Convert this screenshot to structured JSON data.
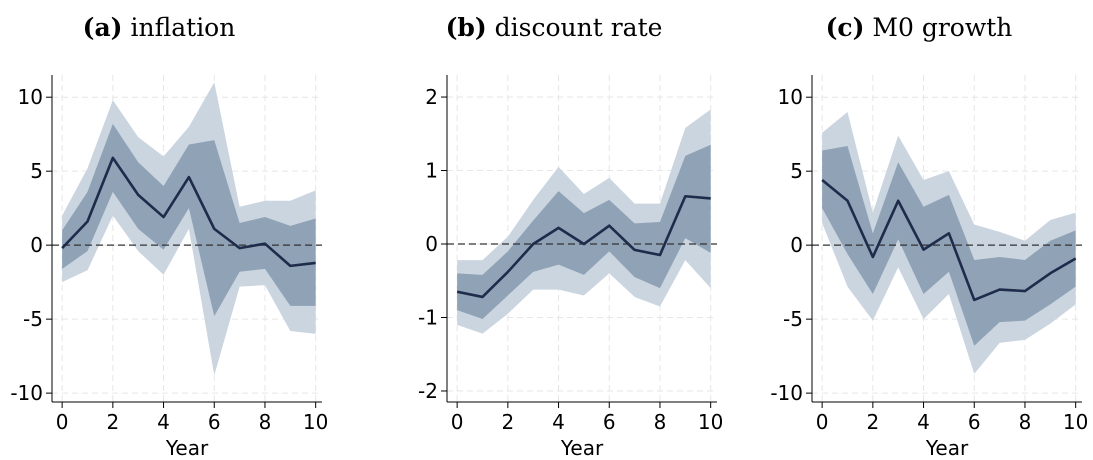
{
  "chart_data": [
    {
      "type": "line",
      "panel_label": "(a)",
      "title": "inflation",
      "x_label": "Year",
      "x": [
        0,
        1,
        2,
        3,
        4,
        5,
        6,
        7,
        8,
        9,
        10
      ],
      "series": [
        {
          "color": "#1e2b4a",
          "values": [
            -0.2,
            1.6,
            5.9,
            3.4,
            1.9,
            4.6,
            1.1,
            -0.2,
            0.1,
            -1.4,
            -1.2
          ]
        }
      ],
      "bands": [
        {
          "color": "#cbd5e0",
          "upper": [
            2.0,
            5.2,
            9.8,
            7.3,
            6.0,
            8.0,
            11.0,
            2.6,
            3.0,
            3.0,
            3.7
          ],
          "lower": [
            -2.5,
            -1.7,
            2.0,
            -0.4,
            -2.0,
            1.1,
            -8.8,
            -2.8,
            -2.7,
            -5.8,
            -6.0
          ]
        },
        {
          "color": "#8fa2b6",
          "upper": [
            1.0,
            3.6,
            8.2,
            5.6,
            4.0,
            6.8,
            7.1,
            1.5,
            1.9,
            1.3,
            1.8
          ],
          "lower": [
            -1.6,
            -0.4,
            3.6,
            1.1,
            -0.3,
            2.5,
            -4.8,
            -1.8,
            -1.6,
            -4.1,
            -4.1
          ]
        }
      ],
      "xlim": [
        -0.4,
        10.25
      ],
      "ylim": [
        -10.6,
        11.5
      ],
      "xticks": [
        0,
        2,
        4,
        6,
        8,
        10
      ],
      "yticks": [
        -10,
        -5,
        0,
        5,
        10
      ],
      "grid": true,
      "hline": 0
    },
    {
      "type": "line",
      "panel_label": "(b)",
      "title": "discount rate",
      "x_label": "Year",
      "x": [
        0,
        1,
        2,
        3,
        4,
        5,
        6,
        7,
        8,
        9,
        10
      ],
      "series": [
        {
          "color": "#1e2b4a",
          "values": [
            -0.65,
            -0.72,
            -0.38,
            0.0,
            0.22,
            0.0,
            0.25,
            -0.08,
            -0.15,
            0.65,
            0.62
          ]
        }
      ],
      "bands": [
        {
          "color": "#cbd5e0",
          "upper": [
            -0.22,
            -0.22,
            0.1,
            0.6,
            1.05,
            0.68,
            0.9,
            0.55,
            0.55,
            1.58,
            1.83
          ],
          "lower": [
            -1.1,
            -1.22,
            -0.95,
            -0.62,
            -0.62,
            -0.7,
            -0.4,
            -0.72,
            -0.85,
            -0.22,
            -0.6
          ]
        },
        {
          "color": "#8fa2b6",
          "upper": [
            -0.4,
            -0.42,
            -0.1,
            0.32,
            0.72,
            0.42,
            0.6,
            0.28,
            0.3,
            1.2,
            1.35
          ],
          "lower": [
            -0.9,
            -1.02,
            -0.7,
            -0.38,
            -0.28,
            -0.42,
            -0.1,
            -0.45,
            -0.6,
            0.08,
            -0.12
          ]
        }
      ],
      "xlim": [
        -0.4,
        10.25
      ],
      "ylim": [
        -2.15,
        2.3
      ],
      "xticks": [
        0,
        2,
        4,
        6,
        8,
        10
      ],
      "yticks": [
        -2,
        -1,
        0,
        1,
        2
      ],
      "grid": true,
      "hline": 0
    },
    {
      "type": "line",
      "panel_label": "(c)",
      "title": "M0 growth",
      "x_label": "Year",
      "x": [
        0,
        1,
        2,
        3,
        4,
        5,
        6,
        7,
        8,
        9,
        10
      ],
      "series": [
        {
          "color": "#1e2b4a",
          "values": [
            4.4,
            3.0,
            -0.8,
            3.0,
            -0.3,
            0.8,
            -3.7,
            -3.0,
            -3.1,
            -1.9,
            -0.9
          ]
        }
      ],
      "bands": [
        {
          "color": "#cbd5e0",
          "upper": [
            7.6,
            9.0,
            2.2,
            7.4,
            4.4,
            5.0,
            1.4,
            0.9,
            0.3,
            1.7,
            2.2
          ],
          "lower": [
            1.5,
            -2.8,
            -5.1,
            -1.5,
            -5.0,
            -3.3,
            -8.7,
            -6.6,
            -6.4,
            -5.3,
            -4.0
          ]
        },
        {
          "color": "#8fa2b6",
          "upper": [
            6.4,
            6.7,
            0.8,
            5.6,
            2.6,
            3.4,
            -1.0,
            -0.8,
            -1.0,
            0.3,
            1.0
          ],
          "lower": [
            2.5,
            -0.6,
            -3.3,
            0.4,
            -3.3,
            -1.8,
            -6.8,
            -5.2,
            -5.1,
            -4.0,
            -2.8
          ]
        }
      ],
      "xlim": [
        -0.4,
        10.25
      ],
      "ylim": [
        -10.6,
        11.5
      ],
      "xticks": [
        0,
        2,
        4,
        6,
        8,
        10
      ],
      "yticks": [
        -10,
        -5,
        0,
        5,
        10
      ],
      "grid": true,
      "hline": 0
    }
  ]
}
